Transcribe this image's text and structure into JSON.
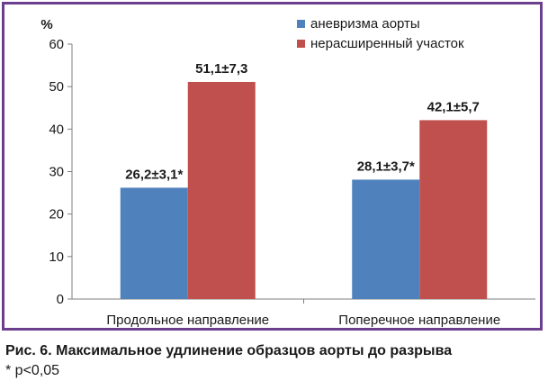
{
  "chart_data": {
    "type": "bar",
    "unit_label": "%",
    "categories": [
      "Продольное направление",
      "Поперечное направление"
    ],
    "series": [
      {
        "name": "аневризма аорты",
        "color": "#4f81bd",
        "values": [
          26.2,
          28.1
        ],
        "labels": [
          "26,2±3,1*",
          "28,1±3,7*"
        ]
      },
      {
        "name": "нерасширенный участок",
        "color": "#c0504d",
        "values": [
          51.1,
          42.1
        ],
        "labels": [
          "51,1±7,3",
          "42,1±5,7"
        ]
      }
    ],
    "ylim": [
      0,
      60
    ],
    "yticks": [
      0,
      10,
      20,
      30,
      40,
      50,
      60
    ],
    "legend_position": "top-right",
    "grid": false
  },
  "caption": "Рис. 6. Максимальное удлинение образцов аорты до разрыва",
  "footnote": "* p<0,05"
}
